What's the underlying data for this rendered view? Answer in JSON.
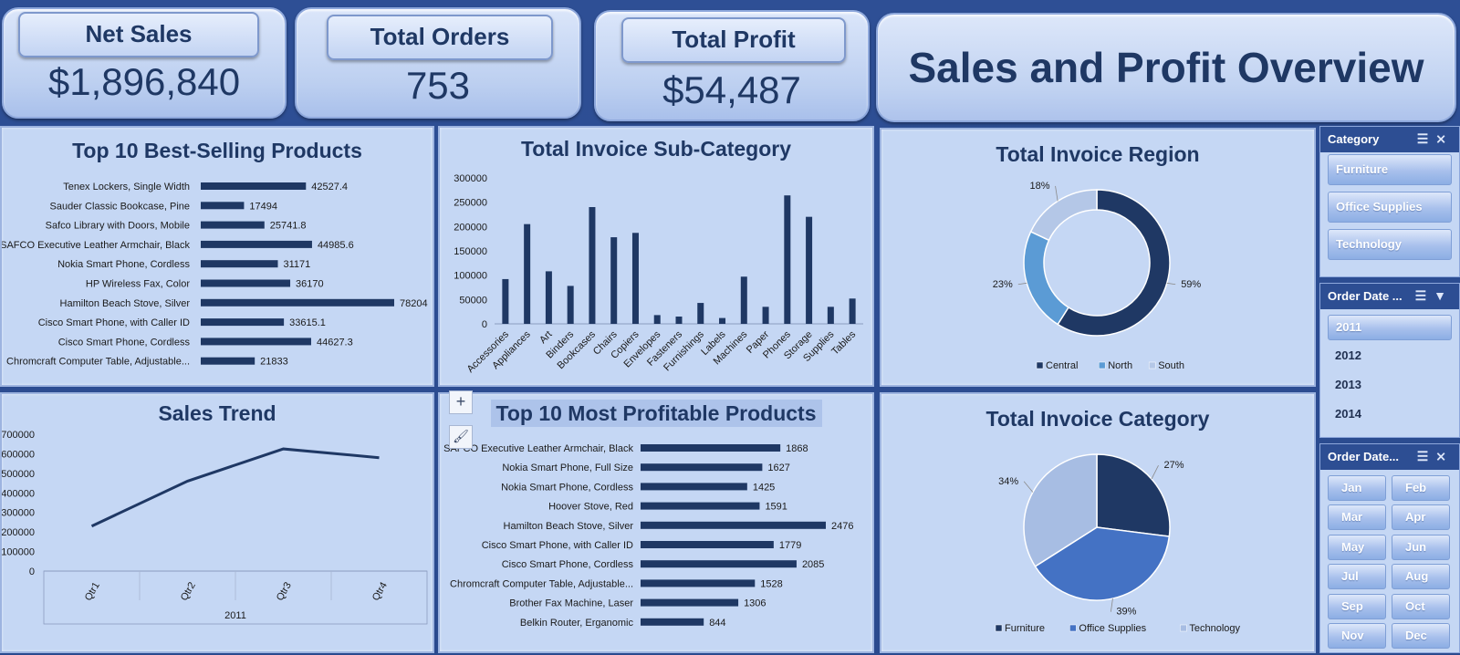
{
  "kpis": {
    "net_sales": {
      "label": "Net Sales",
      "value": "$1,896,840"
    },
    "total_orders": {
      "label": "Total Orders",
      "value": "753"
    },
    "total_profit": {
      "label": "Total Profit",
      "value": "$54,487"
    }
  },
  "dashboard_title": "Sales and Profit Overview",
  "colors": {
    "dark_navy": "#1f3864",
    "mid_blue": "#4472c4",
    "light_blue": "#a7bde3",
    "panel_bg": "#c5d7f4",
    "header_bg": "#2e4f95"
  },
  "chart_data": [
    {
      "id": "best_selling",
      "type": "bar",
      "orientation": "horizontal",
      "title": "Top 10 Best-Selling Products",
      "categories": [
        "Tenex Lockers, Single Width",
        "Sauder Classic Bookcase, Pine",
        "Safco Library with Doors, Mobile",
        "SAFCO Executive Leather Armchair, Black",
        "Nokia Smart Phone, Cordless",
        "HP Wireless Fax, Color",
        "Hamilton Beach Stove, Silver",
        "Cisco Smart Phone, with Caller ID",
        "Cisco Smart Phone, Cordless",
        "Chromcraft Computer Table, Adjustable..."
      ],
      "values": [
        42527.4,
        17494,
        25741.8,
        44985.6,
        31171,
        36170,
        78204,
        33615.1,
        44627.3,
        21833
      ],
      "value_labels": [
        "42527.4",
        "17494",
        "25741.8",
        "44985.6",
        "31171",
        "36170",
        "78204",
        "33615.1",
        "44627.3",
        "21833"
      ]
    },
    {
      "id": "sub_category",
      "type": "bar",
      "title": "Total Invoice Sub-Category",
      "categories": [
        "Accessories",
        "Appliances",
        "Art",
        "Binders",
        "Bookcases",
        "Chairs",
        "Copiers",
        "Envelopes",
        "Fasteners",
        "Furnishings",
        "Labels",
        "Machines",
        "Paper",
        "Phones",
        "Storage",
        "Supplies",
        "Tables"
      ],
      "values": [
        92000,
        205000,
        108000,
        78000,
        240000,
        178000,
        187000,
        18000,
        15000,
        43000,
        12000,
        97000,
        35000,
        264000,
        220000,
        35000,
        52000
      ],
      "ylim": [
        0,
        300000
      ],
      "y_ticks": [
        "300000",
        "250000",
        "200000",
        "150000",
        "100000",
        "50000",
        "0"
      ]
    },
    {
      "id": "region",
      "type": "pie",
      "style": "donut",
      "title": "Total Invoice Region",
      "categories": [
        "Central",
        "North",
        "South"
      ],
      "values": [
        59,
        23,
        18
      ],
      "value_labels": [
        "59%",
        "23%",
        "18%"
      ],
      "colors": [
        "#1f3864",
        "#5b9bd5",
        "#b4c7e7"
      ],
      "legend": "bottom"
    },
    {
      "id": "sales_trend",
      "type": "line",
      "title": "Sales Trend",
      "categories": [
        "Qtr1",
        "Qtr2",
        "Qtr3",
        "Qtr4"
      ],
      "group_label": "2011",
      "values": [
        230000,
        460000,
        625000,
        580000
      ],
      "ylim": [
        0,
        700000
      ],
      "y_ticks": [
        "700000",
        "600000",
        "500000",
        "400000",
        "300000",
        "200000",
        "100000",
        "0"
      ]
    },
    {
      "id": "most_profitable",
      "type": "bar",
      "orientation": "horizontal",
      "title": "Top 10 Most Profitable Products",
      "categories": [
        "SAFCO Executive Leather Armchair, Black",
        "Nokia Smart Phone, Full Size",
        "Nokia Smart Phone, Cordless",
        "Hoover Stove, Red",
        "Hamilton Beach Stove, Silver",
        "Cisco Smart Phone, with Caller ID",
        "Cisco Smart Phone, Cordless",
        "Chromcraft Computer Table, Adjustable...",
        "Brother Fax Machine, Laser",
        "Belkin Router, Erganomic"
      ],
      "values": [
        1868,
        1627,
        1425,
        1591,
        2476,
        1779,
        2085,
        1528,
        1306,
        844
      ],
      "value_labels": [
        "1868",
        "1627",
        "1425",
        "1591",
        "2476",
        "1779",
        "2085",
        "1528",
        "1306",
        "844"
      ]
    },
    {
      "id": "category",
      "type": "pie",
      "title": "Total Invoice Category",
      "categories": [
        "Furniture",
        "Office Supplies",
        "Technology"
      ],
      "values": [
        27,
        39,
        34
      ],
      "value_labels": [
        "27%",
        "39%",
        "34%"
      ],
      "colors": [
        "#1f3864",
        "#4472c4",
        "#a7bde3"
      ],
      "legend": "bottom"
    }
  ],
  "slicers": {
    "category": {
      "header": "Category",
      "items": [
        "Furniture",
        "Office Supplies",
        "Technology"
      ]
    },
    "order_year": {
      "header": "Order Date ...",
      "items": [
        "2011",
        "2012",
        "2013",
        "2014"
      ],
      "selected": "2011"
    },
    "order_month": {
      "header": "Order Date...",
      "items": [
        "Jan",
        "Feb",
        "Mar",
        "Apr",
        "May",
        "Jun",
        "Jul",
        "Aug",
        "Sep",
        "Oct",
        "Nov",
        "Dec"
      ]
    }
  },
  "toolbar_icons": [
    "plus-icon",
    "brush-icon"
  ]
}
